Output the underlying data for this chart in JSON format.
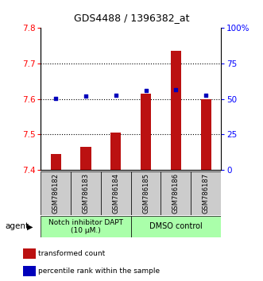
{
  "title": "GDS4488 / 1396382_at",
  "samples": [
    "GSM786182",
    "GSM786183",
    "GSM786184",
    "GSM786185",
    "GSM786186",
    "GSM786187"
  ],
  "red_values": [
    7.445,
    7.465,
    7.505,
    7.615,
    7.735,
    7.6
  ],
  "blue_values": [
    50.5,
    52.0,
    52.5,
    56.0,
    56.5,
    52.5
  ],
  "ymin": 7.4,
  "ymax": 7.8,
  "y2min": 0,
  "y2max": 100,
  "yticks": [
    7.4,
    7.5,
    7.6,
    7.7,
    7.8
  ],
  "y2ticks": [
    0,
    25,
    50,
    75,
    100
  ],
  "y2ticklabels": [
    "0",
    "25",
    "50",
    "75",
    "100%"
  ],
  "bar_color": "#bb1111",
  "dot_color": "#0000bb",
  "group1_label": "Notch inhibitor DAPT\n(10 μM.)",
  "group2_label": "DMSO control",
  "group_bg_color": "#aaffaa",
  "legend_red": "transformed count",
  "legend_blue": "percentile rank within the sample",
  "agent_label": "agent",
  "bar_base": 7.4,
  "gridlines": [
    7.5,
    7.6,
    7.7
  ]
}
